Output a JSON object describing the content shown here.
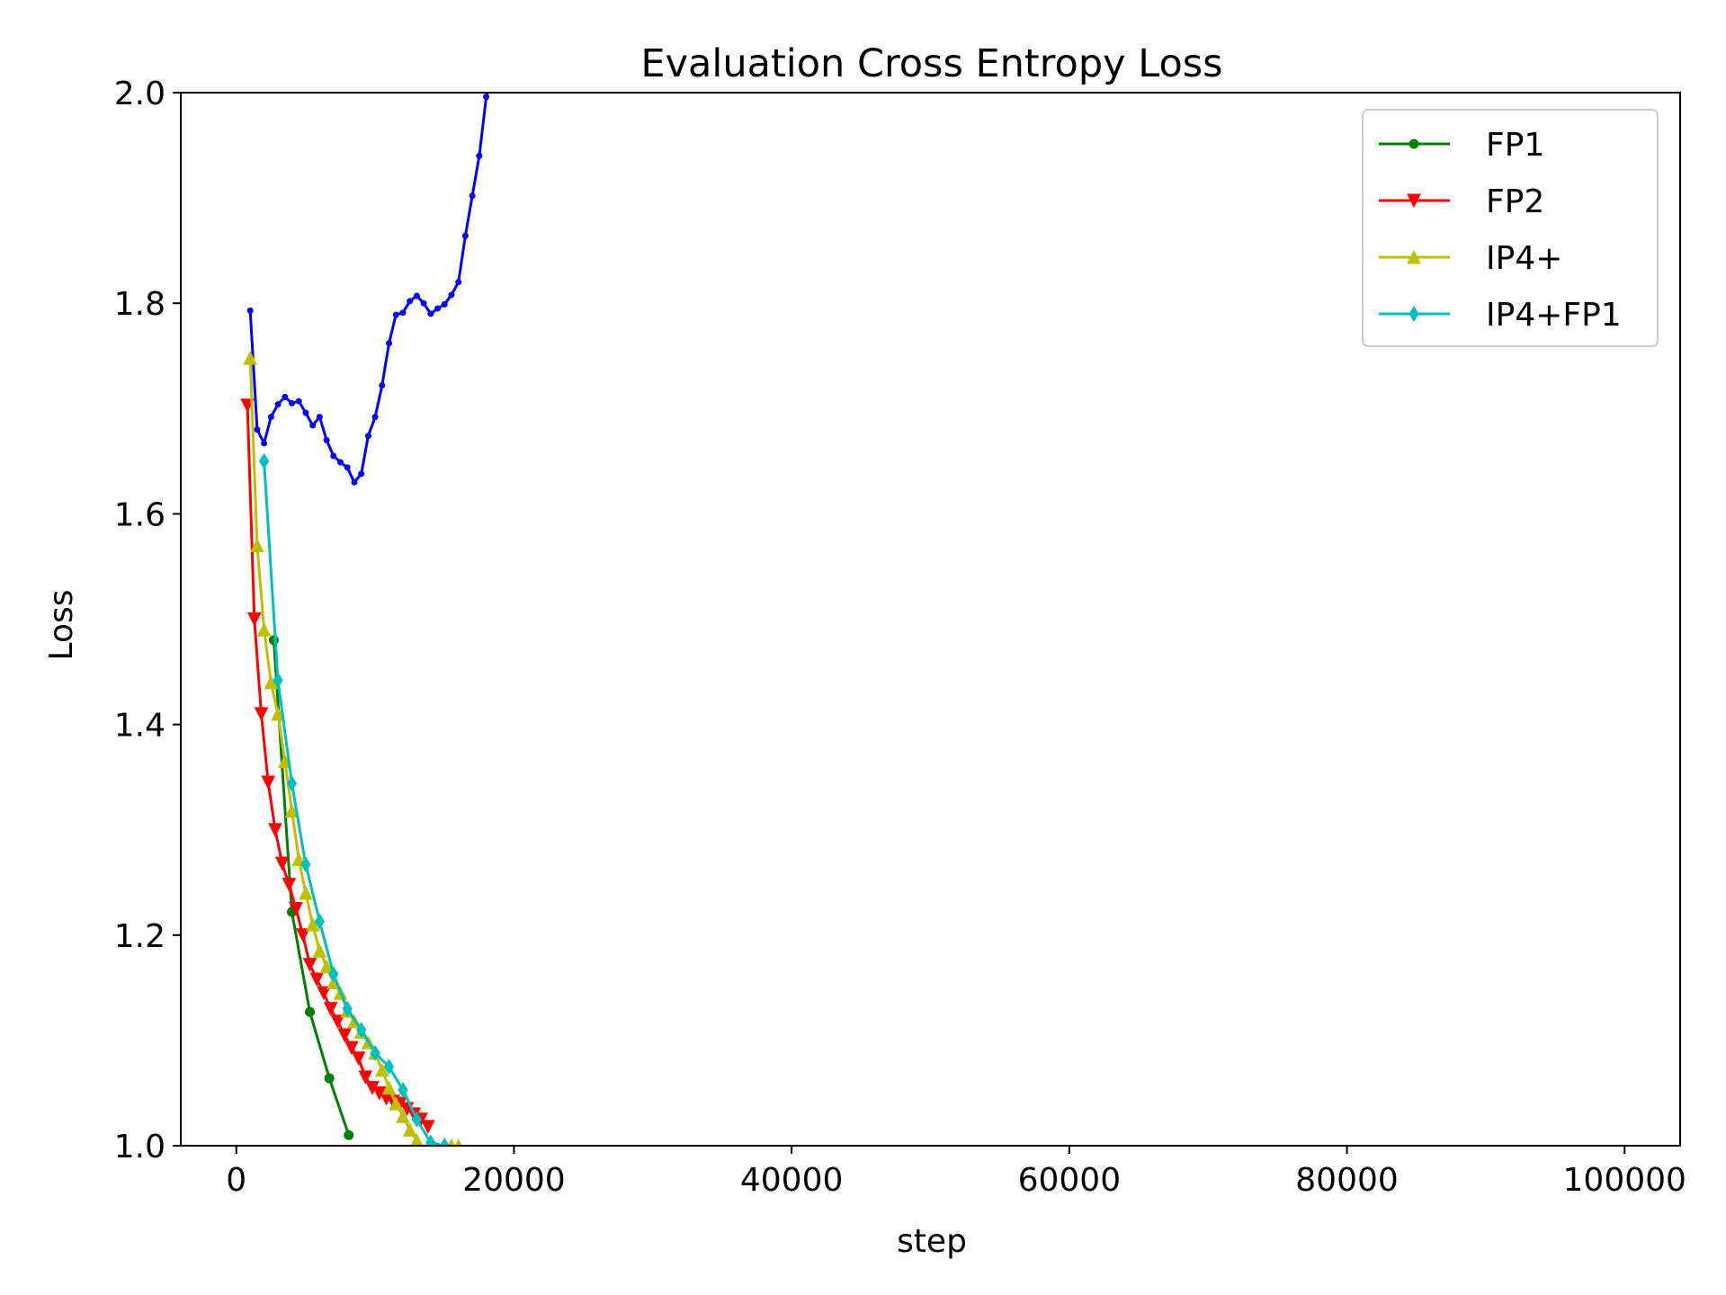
{
  "chart_data": {
    "type": "line",
    "title": "Evaluation Cross Entropy Loss",
    "xlabel": "step",
    "ylabel": "Loss",
    "xlim": [
      -4000,
      104000
    ],
    "ylim": [
      1.0,
      2.0
    ],
    "xticks": [
      0,
      20000,
      40000,
      60000,
      80000,
      100000
    ],
    "xtick_labels": [
      "0",
      "20000",
      "40000",
      "60000",
      "80000",
      "100000"
    ],
    "yticks": [
      1.0,
      1.2,
      1.4,
      1.6,
      1.8,
      2.0
    ],
    "ytick_labels": [
      "1.0",
      "1.2",
      "1.4",
      "1.6",
      "1.8",
      "2.0"
    ],
    "grid": false,
    "legend_position": "top-right",
    "series": [
      {
        "name": "",
        "color": "#0000ff",
        "marker": "point",
        "in_legend": false,
        "x": [
          1000,
          1500,
          2000,
          2500,
          3000,
          3500,
          4000,
          4500,
          5000,
          5500,
          6000,
          6500,
          7000,
          7500,
          8000,
          8500,
          9000,
          9500,
          10000,
          10500,
          11000,
          11500,
          12000,
          12500,
          13000,
          13500,
          14000,
          14500,
          15000,
          15500,
          16000,
          16500,
          17000,
          17500,
          18000,
          18500
        ],
        "y": [
          1.793,
          1.68,
          1.667,
          1.692,
          1.704,
          1.711,
          1.705,
          1.707,
          1.696,
          1.684,
          1.692,
          1.67,
          1.655,
          1.649,
          1.644,
          1.63,
          1.638,
          1.674,
          1.692,
          1.722,
          1.762,
          1.789,
          1.791,
          1.802,
          1.807,
          1.8,
          1.79,
          1.795,
          1.799,
          1.808,
          1.82,
          1.864,
          1.902,
          1.94,
          1.996,
          2.02
        ]
      },
      {
        "name": "FP1",
        "color": "#008000",
        "marker": "circle",
        "in_legend": true,
        "x": [
          2700,
          4000,
          5300,
          6700,
          8100
        ],
        "y": [
          1.48,
          1.222,
          1.127,
          1.064,
          1.01
        ]
      },
      {
        "name": "FP2",
        "color": "#ff0000",
        "marker": "triangle-down",
        "in_legend": true,
        "x": [
          800,
          1300,
          1800,
          2300,
          2800,
          3300,
          3800,
          4300,
          4800,
          5300,
          5800,
          6300,
          6800,
          7300,
          7800,
          8300,
          8800,
          9300,
          9800,
          10300,
          10800,
          11300,
          11800,
          12300,
          12800,
          13300,
          13800
        ],
        "y": [
          1.703,
          1.5,
          1.41,
          1.345,
          1.3,
          1.268,
          1.248,
          1.225,
          1.2,
          1.172,
          1.158,
          1.145,
          1.13,
          1.118,
          1.105,
          1.093,
          1.083,
          1.065,
          1.055,
          1.05,
          1.045,
          1.042,
          1.04,
          1.035,
          1.03,
          1.025,
          1.018
        ]
      },
      {
        "name": "IP4+",
        "color": "#bfbf00",
        "marker": "triangle-up",
        "in_legend": true,
        "x": [
          1000,
          1500,
          2000,
          2500,
          3000,
          3500,
          4000,
          4500,
          5000,
          5500,
          6000,
          6500,
          7000,
          7500,
          8000,
          8500,
          9000,
          9500,
          10000,
          10500,
          11000,
          11500,
          12000,
          12500,
          13000,
          13500,
          14000,
          14500,
          15000,
          15500,
          16000
        ],
        "y": [
          1.748,
          1.57,
          1.49,
          1.44,
          1.41,
          1.365,
          1.318,
          1.272,
          1.24,
          1.21,
          1.185,
          1.17,
          1.155,
          1.145,
          1.128,
          1.118,
          1.108,
          1.098,
          1.088,
          1.072,
          1.055,
          1.04,
          1.028,
          1.015,
          1.005,
          0.995,
          0.99,
          0.995,
          1.0,
          1.0,
          1.0
        ]
      },
      {
        "name": "IP4+FP1",
        "color": "#00bfbf",
        "marker": "diamond",
        "in_legend": true,
        "x": [
          2000,
          3000,
          4000,
          5000,
          6000,
          7000,
          8000,
          9000,
          10000,
          11000,
          12000,
          13000,
          14000,
          15000
        ],
        "y": [
          1.65,
          1.442,
          1.344,
          1.267,
          1.213,
          1.163,
          1.13,
          1.11,
          1.088,
          1.075,
          1.053,
          1.025,
          1.003,
          1.0
        ]
      }
    ]
  }
}
